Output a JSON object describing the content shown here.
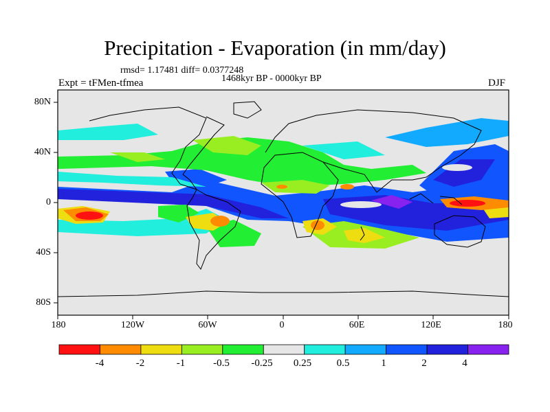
{
  "header": {
    "title": "Precipitation - Evaporation (in mm/day)",
    "stats": "rmsd= 1.17481 diff= 0.0377248",
    "subtitle": "1468kyr BP - 0000kyr BP",
    "expt": "Expt = tFMen-tfmea",
    "season": "DJF"
  },
  "axes": {
    "y_labels": [
      "80N",
      "40N",
      "0",
      "40S",
      "80S"
    ],
    "x_labels": [
      "180",
      "120W",
      "60W",
      "0",
      "60E",
      "120E",
      "180"
    ]
  },
  "colorbar": {
    "labels": [
      "-4",
      "-2",
      "-1",
      "-0.5",
      "-0.25",
      "0.25",
      "0.5",
      "1",
      "2",
      "4"
    ],
    "colors": [
      "#ff1111",
      "#ff8c00",
      "#eedd11",
      "#99ee22",
      "#22ee33",
      "#e6e6e6",
      "#22eedd",
      "#11aaff",
      "#1155ff",
      "#2222dd",
      "#8822ee"
    ]
  },
  "colors": {
    "ocean_background": "#e6e6e6",
    "coastline": "#000000"
  }
}
